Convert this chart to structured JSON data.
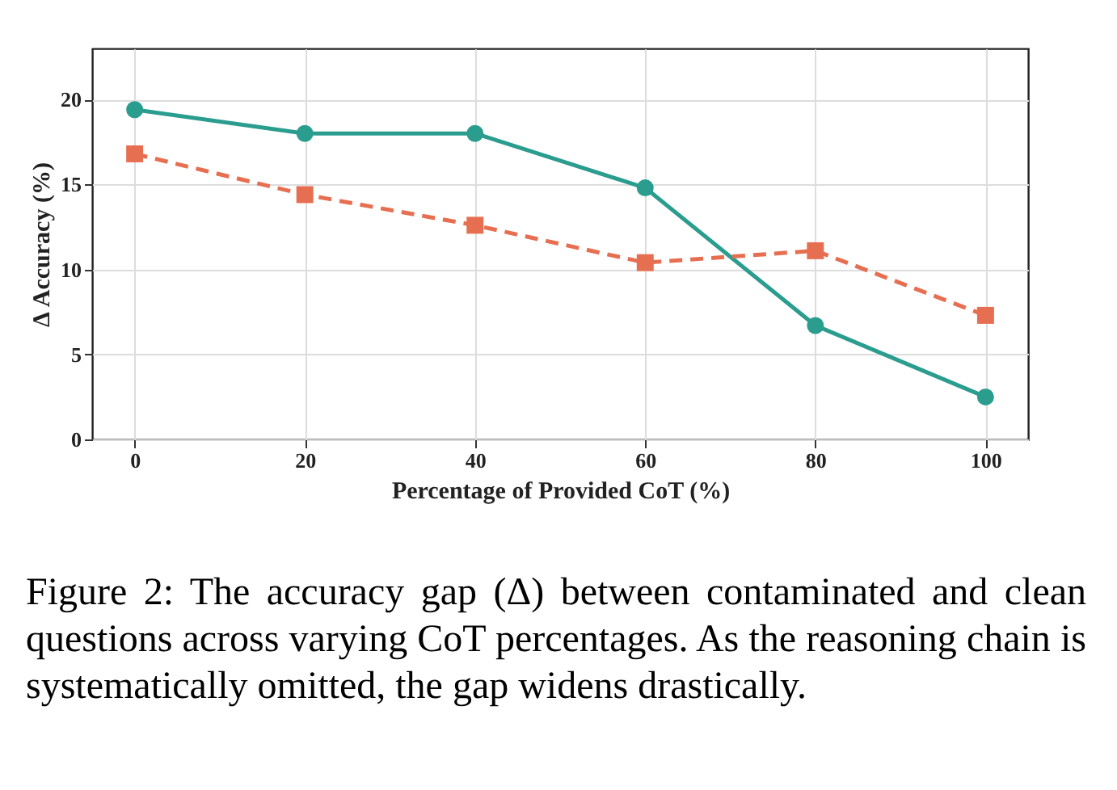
{
  "chart_data": {
    "type": "line",
    "xlabel": "Percentage of Provided CoT (%)",
    "ylabel": "Δ Accuracy (%)",
    "x": [
      0,
      20,
      40,
      60,
      80,
      100
    ],
    "series": [
      {
        "color": "#2a9d8f",
        "marker": "circle",
        "line_style": "solid",
        "values": [
          19.4,
          18.0,
          18.0,
          14.8,
          6.7,
          2.5
        ]
      },
      {
        "color": "#e76f51",
        "marker": "square",
        "line_style": "dashed",
        "values": [
          16.8,
          14.4,
          12.6,
          10.4,
          11.1,
          7.3
        ]
      }
    ],
    "xlim": [
      -5,
      105
    ],
    "xticks": [
      0,
      20,
      40,
      60,
      80,
      100
    ],
    "ylim": [
      0,
      23
    ],
    "yticks": [
      0,
      5,
      10,
      15,
      20
    ],
    "grid": true,
    "annotations": [
      "Figure 2: The accuracy gap (Δ) between contaminated and clean questions across varying CoT percentages. As the reasoning chain is systematically omitted, the gap widens drastically."
    ]
  }
}
